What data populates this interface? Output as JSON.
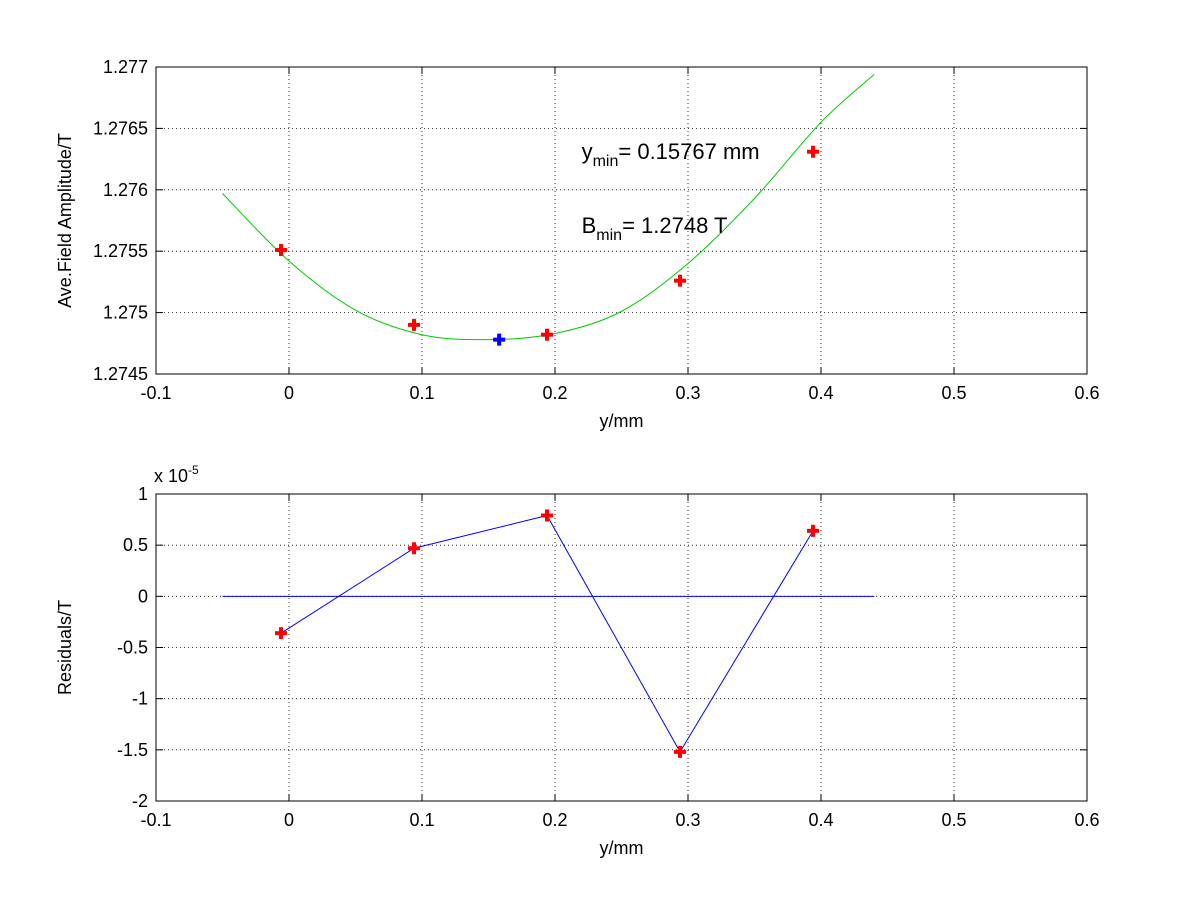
{
  "chart_data": [
    {
      "type": "line",
      "xlabel": "y/mm",
      "ylabel": "Ave.Field Amplitude/T",
      "xlim": [
        -0.1,
        0.6
      ],
      "ylim": [
        1.2745,
        1.277
      ],
      "grid": true,
      "xticks": [
        "-0.1",
        "0",
        "0.1",
        "0.2",
        "0.3",
        "0.4",
        "0.5",
        "0.6"
      ],
      "yticks": [
        "1.2745",
        "1.275",
        "1.2755",
        "1.276",
        "1.2765",
        "1.277"
      ],
      "series": [
        {
          "kind": "fit-curve",
          "color": "#00cc00",
          "x": [
            -0.05,
            0.0,
            0.05,
            0.1,
            0.15,
            0.2,
            0.25,
            0.3,
            0.35,
            0.4,
            0.44
          ],
          "y": [
            1.27597,
            1.27542,
            1.27502,
            1.27482,
            1.27478,
            1.27483,
            1.27501,
            1.2754,
            1.27593,
            1.27655,
            1.27694
          ]
        },
        {
          "kind": "measured-points",
          "color": "#ff0000",
          "marker": "plus",
          "x": [
            -0.006,
            0.094,
            0.194,
            0.294,
            0.394
          ],
          "y": [
            1.27551,
            1.2749,
            1.27482,
            1.27526,
            1.27631
          ]
        },
        {
          "kind": "minimum-point",
          "color": "#0000ff",
          "marker": "plus",
          "x": [
            0.158
          ],
          "y": [
            1.27478
          ]
        }
      ],
      "annotations": [
        {
          "base": "y",
          "sub": "min",
          "text": "= 0.15767 mm",
          "x": 0.22,
          "y": 1.27625
        },
        {
          "base": "B",
          "sub": "min",
          "text": "= 1.2748 T",
          "x": 0.22,
          "y": 1.27565
        }
      ]
    },
    {
      "type": "line",
      "xlabel": "y/mm",
      "ylabel": "Residuals/T",
      "exponent_label": {
        "base": "x 10",
        "exp": "-5"
      },
      "xlim": [
        -0.1,
        0.6
      ],
      "ylim": [
        -2,
        1
      ],
      "grid": true,
      "xticks": [
        "-0.1",
        "0",
        "0.1",
        "0.2",
        "0.3",
        "0.4",
        "0.5",
        "0.6"
      ],
      "yticks": [
        "-2",
        "-1.5",
        "-1",
        "-0.5",
        "0",
        "0.5",
        "1"
      ],
      "series": [
        {
          "kind": "zero-line",
          "color": "#0000ff",
          "x": [
            -0.05,
            0.44
          ],
          "y": [
            0,
            0
          ]
        },
        {
          "kind": "residual-line",
          "color": "#0000ff",
          "marker": "plus",
          "marker_color": "#ff0000",
          "x": [
            -0.006,
            0.094,
            0.194,
            0.294,
            0.394
          ],
          "y": [
            -0.36,
            0.47,
            0.79,
            -1.52,
            0.64
          ]
        }
      ]
    }
  ]
}
